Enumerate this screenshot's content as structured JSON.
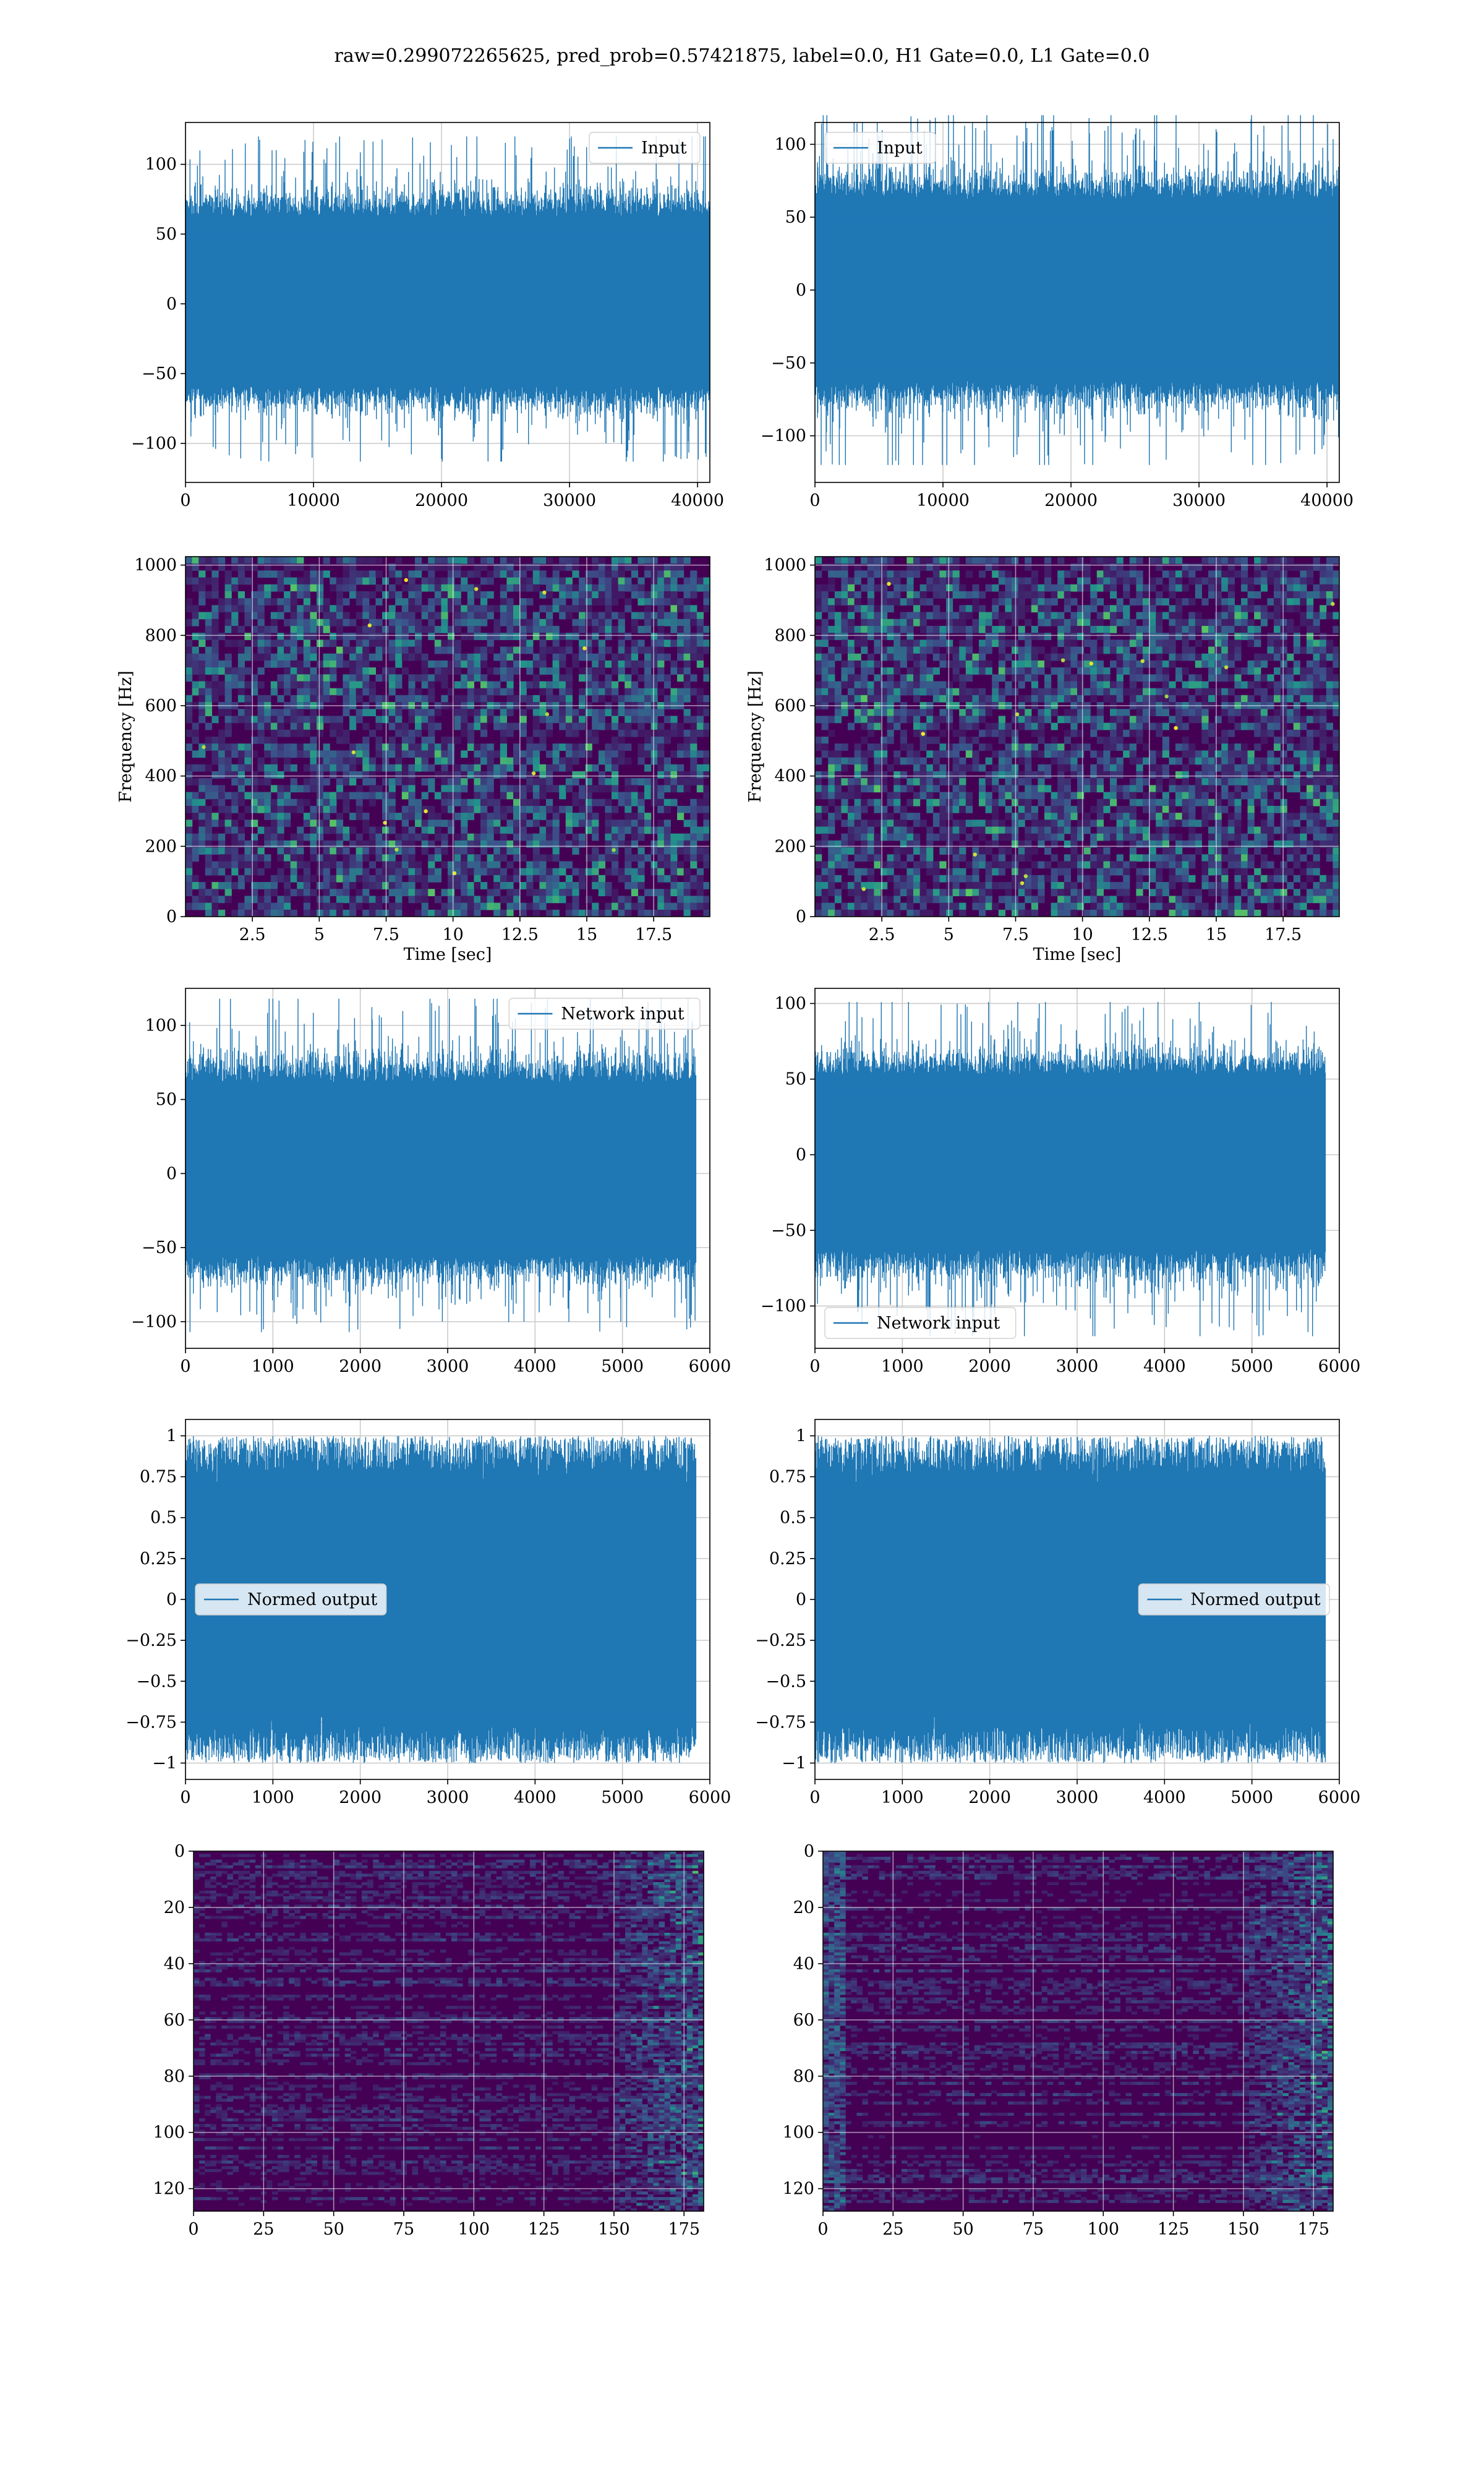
{
  "figure": {
    "suptitle": "raw=0.299072265625, pred_prob=0.57421875, label=0.0, H1 Gate=0.0, L1 Gate=0.0"
  },
  "colors": {
    "series": "#1f77b4",
    "grid": "#cccccc",
    "viridis_low": "#440154",
    "viridis_mid": "#21918c",
    "viridis_high": "#fde725"
  },
  "chart_data": [
    {
      "id": "input-h1",
      "type": "line",
      "noise_kind": "signal",
      "series": [
        {
          "name": "Input",
          "n_points": 40960,
          "y_range": [
            -113,
            120
          ]
        }
      ],
      "xlim": [
        0,
        40960
      ],
      "ylim": [
        -128,
        130
      ],
      "xticks": [
        0,
        10000,
        20000,
        30000,
        40000
      ],
      "yticks": [
        -100,
        -50,
        0,
        50,
        100
      ],
      "xlabel": "",
      "ylabel": "",
      "legend": "upper right",
      "grid": true
    },
    {
      "id": "input-l1",
      "type": "line",
      "noise_kind": "signal",
      "series": [
        {
          "name": "Input",
          "n_points": 40960,
          "y_range": [
            -120,
            120
          ]
        }
      ],
      "xlim": [
        0,
        40960
      ],
      "ylim": [
        -132,
        115
      ],
      "xticks": [
        0,
        10000,
        20000,
        30000,
        40000
      ],
      "yticks": [
        -100,
        -50,
        0,
        50,
        100
      ],
      "xlabel": "",
      "ylabel": "",
      "legend": "upper left",
      "grid": true
    },
    {
      "id": "spectrogram-h1",
      "type": "heatmap",
      "heat_kind": "spec",
      "xlim": [
        0,
        19.6
      ],
      "ylim": [
        0,
        1024
      ],
      "xticks": [
        2.5,
        5.0,
        7.5,
        10.0,
        12.5,
        15.0,
        17.5
      ],
      "yticks": [
        0,
        200,
        400,
        600,
        800,
        1000
      ],
      "xlabel": "Time [sec]",
      "ylabel": "Frequency [Hz]",
      "grid": true,
      "colormap": "viridis"
    },
    {
      "id": "spectrogram-l1",
      "type": "heatmap",
      "heat_kind": "spec",
      "xlim": [
        0,
        19.6
      ],
      "ylim": [
        0,
        1024
      ],
      "xticks": [
        2.5,
        5.0,
        7.5,
        10.0,
        12.5,
        15.0,
        17.5
      ],
      "yticks": [
        0,
        200,
        400,
        600,
        800,
        1000
      ],
      "xlabel": "Time [sec]",
      "ylabel": "Frequency [Hz]",
      "grid": true,
      "colormap": "viridis"
    },
    {
      "id": "network-input-h1",
      "type": "line",
      "noise_kind": "signal",
      "series": [
        {
          "name": "Network input",
          "n_points": 5840,
          "y_range": [
            -107,
            118
          ]
        }
      ],
      "xlim": [
        0,
        6000
      ],
      "ylim": [
        -118,
        125
      ],
      "xticks": [
        0,
        1000,
        2000,
        3000,
        4000,
        5000,
        6000
      ],
      "yticks": [
        -100,
        -50,
        0,
        50,
        100
      ],
      "xlabel": "",
      "ylabel": "",
      "legend": "upper right",
      "grid": true
    },
    {
      "id": "network-input-l1",
      "type": "line",
      "noise_kind": "signal",
      "series": [
        {
          "name": "Network input",
          "n_points": 5840,
          "y_range": [
            -120,
            101
          ]
        }
      ],
      "xlim": [
        0,
        6000
      ],
      "ylim": [
        -128,
        110
      ],
      "xticks": [
        0,
        1000,
        2000,
        3000,
        4000,
        5000,
        6000
      ],
      "yticks": [
        -100,
        -50,
        0,
        50,
        100
      ],
      "xlabel": "",
      "ylabel": "",
      "legend": "lower left",
      "grid": true
    },
    {
      "id": "normed-output-h1",
      "type": "line",
      "noise_kind": "tanh",
      "series": [
        {
          "name": "Normed output",
          "n_points": 5840,
          "y_range": [
            -1.0,
            1.0
          ]
        }
      ],
      "xlim": [
        0,
        6000
      ],
      "ylim": [
        -1.1,
        1.1
      ],
      "xticks": [
        0,
        1000,
        2000,
        3000,
        4000,
        5000,
        6000
      ],
      "yticks": [
        -1.0,
        -0.75,
        -0.5,
        -0.25,
        0.0,
        0.25,
        0.5,
        0.75,
        1.0
      ],
      "xlabel": "",
      "ylabel": "",
      "legend": "center left",
      "grid": true
    },
    {
      "id": "normed-output-l1",
      "type": "line",
      "noise_kind": "tanh",
      "series": [
        {
          "name": "Normed output",
          "n_points": 5840,
          "y_range": [
            -1.0,
            1.0
          ]
        }
      ],
      "xlim": [
        0,
        6000
      ],
      "ylim": [
        -1.1,
        1.1
      ],
      "xticks": [
        0,
        1000,
        2000,
        3000,
        4000,
        5000,
        6000
      ],
      "yticks": [
        -1.0,
        -0.75,
        -0.5,
        -0.25,
        0.0,
        0.25,
        0.5,
        0.75,
        1.0
      ],
      "xlabel": "",
      "ylabel": "",
      "legend": "center right",
      "grid": true
    },
    {
      "id": "feature-map-h1",
      "type": "heatmap",
      "heat_kind": "feat",
      "rows": 128,
      "cols": 182,
      "xlim": [
        0,
        182
      ],
      "ylim": [
        128,
        0
      ],
      "xticks": [
        0,
        25,
        50,
        75,
        100,
        125,
        150,
        175
      ],
      "yticks": [
        0,
        20,
        40,
        60,
        80,
        100,
        120
      ],
      "xlabel": "",
      "ylabel": "",
      "grid": true,
      "colormap": "viridis"
    },
    {
      "id": "feature-map-l1",
      "type": "heatmap",
      "heat_kind": "feat",
      "rows": 128,
      "cols": 182,
      "xlim": [
        0,
        182
      ],
      "ylim": [
        128,
        0
      ],
      "xticks": [
        0,
        25,
        50,
        75,
        100,
        125,
        150,
        175
      ],
      "yticks": [
        0,
        20,
        40,
        60,
        80,
        100,
        120
      ],
      "xlabel": "",
      "ylabel": "",
      "grid": true,
      "colormap": "viridis"
    }
  ]
}
